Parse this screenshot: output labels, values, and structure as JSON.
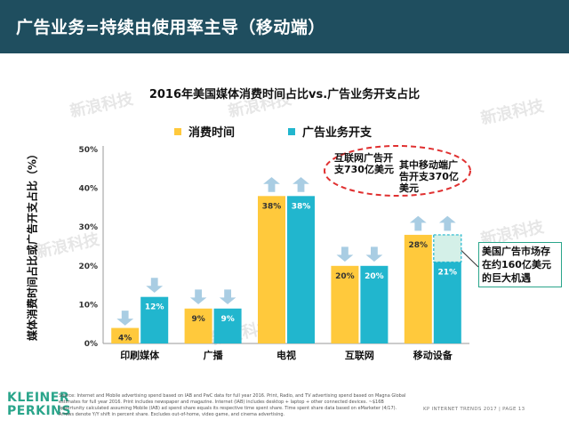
{
  "header": {
    "title": "广告业务=持续由使用率主导（移动端）"
  },
  "chart_data": {
    "type": "bar",
    "title": "2016年美国媒体消费时间占比vs.广告业务开支占比",
    "ylabel": "媒体消费时间占比或广告开支占比（%）",
    "xlabel": "",
    "ylim": [
      0,
      50
    ],
    "yticks": [
      "0%",
      "10%",
      "20%",
      "30%",
      "40%",
      "50%"
    ],
    "grid": false,
    "legend_position": "top",
    "categories": [
      "印刷媒体",
      "广播",
      "电视",
      "互联网",
      "移动设备"
    ],
    "series": [
      {
        "name": "消费时间",
        "values": [
          4,
          9,
          38,
          20,
          28
        ],
        "labels": [
          "4%",
          "9%",
          "38%",
          "20%",
          "28%"
        ],
        "color": "#ffc93c"
      },
      {
        "name": "广告业务开支",
        "values": [
          12,
          9,
          38,
          20,
          21
        ],
        "labels": [
          "12%",
          "9%",
          "38%",
          "20%",
          "21%"
        ],
        "color": "#21b6ce"
      }
    ],
    "arrows": [
      "down",
      "down",
      "up",
      "down",
      "up"
    ],
    "opportunity_gap": {
      "category": "移动设备",
      "from": 21,
      "to": 28
    },
    "annotations": {
      "internet_spend": "互联网广告开支730亿美元",
      "mobile_spend": "其中移动端广告开支370亿美元",
      "callout": "美国广告市场存在约160亿美元的巨大机遇"
    }
  },
  "logo": {
    "line1": "KLEINER",
    "line2": "PERKINS"
  },
  "source_note": "Source: Internet and Mobile advertising spend based on IAB and PwC data for full year 2016. Print, Radio, and TV advertising spend based on Magna Global estimates for full year 2016. Print includes newspaper and magazine. Internet (IAB) includes desktop + laptop + other connected devices. ~$16B opportunity calculated assuming Mobile (IAB) ad spend share equals its respective time spent share. Time spent share data based on eMarketer (4/17). Arrows denote Y/Y shift in percent share. Excludes out-of-home, video game, and cinema advertising.",
  "footer": "KP INTERNET TRENDS 2017  |  PAGE 13",
  "watermark": "新浪科技",
  "colors": {
    "header_bg": "#1f4e5f",
    "yellow": "#ffc93c",
    "teal": "#21b6ce",
    "arrow": "#a9cde3",
    "oval": "#e03030",
    "callout_border": "#2aa58b"
  }
}
